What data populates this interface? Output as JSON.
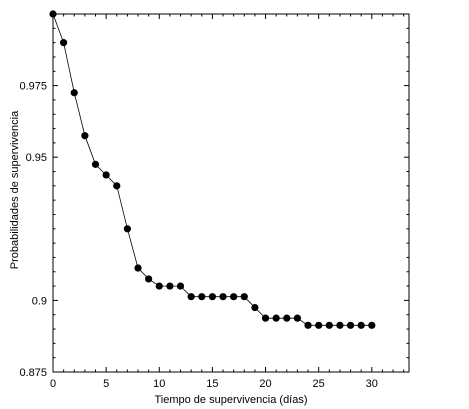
{
  "chart_data": {
    "type": "line",
    "xlabel": "Tiempo de supervivencia (días)",
    "ylabel": "Probabilidades de supervivencia",
    "xlim": [
      0,
      33.5
    ],
    "ylim": [
      0.875,
      1.0
    ],
    "x_ticks": [
      0,
      5,
      10,
      15,
      20,
      25,
      30
    ],
    "y_ticks": [
      0.875,
      0.9,
      0.95,
      0.975
    ],
    "grid": false,
    "series": [
      {
        "marker": "circle-filled",
        "color": "#000000",
        "x": [
          0,
          1,
          2,
          3,
          4,
          5,
          6,
          7,
          8,
          9,
          10,
          11,
          12,
          13,
          14,
          15,
          16,
          17,
          18,
          19,
          20,
          21,
          22,
          23,
          24,
          25,
          26,
          27,
          28,
          29,
          30
        ],
        "y": [
          1.0,
          0.99,
          0.9725,
          0.9575,
          0.9475,
          0.9438,
          0.94,
          0.925,
          0.9113,
          0.9075,
          0.905,
          0.905,
          0.905,
          0.9013,
          0.9013,
          0.9013,
          0.9013,
          0.9013,
          0.9013,
          0.8975,
          0.8938,
          0.8938,
          0.8938,
          0.8938,
          0.8913,
          0.8913,
          0.8913,
          0.8913,
          0.8913,
          0.8913,
          0.8913
        ]
      }
    ]
  }
}
